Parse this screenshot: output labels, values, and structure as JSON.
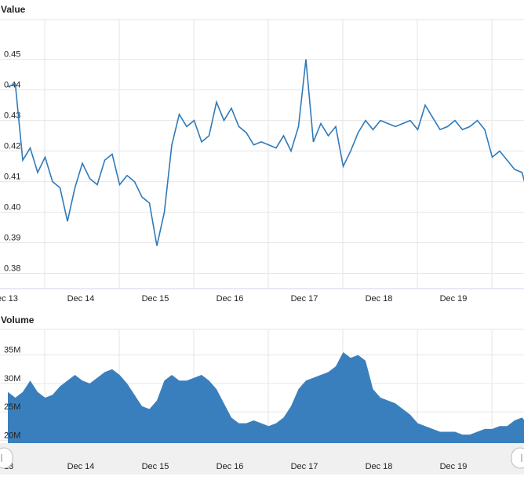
{
  "chart_data": [
    {
      "type": "line",
      "title": "Value",
      "ylim": [
        0.375,
        0.463
      ],
      "yticks": [
        "0.38",
        "0.39",
        "0.40",
        "0.41",
        "0.42",
        "0.43",
        "0.44",
        "0.45"
      ],
      "xticks": [
        "ec 13",
        "Dec 14",
        "Dec 15",
        "Dec 16",
        "Dec 17",
        "Dec 18",
        "Dec 19"
      ],
      "xlim": [
        0,
        7
      ],
      "grid": true,
      "color": "#2f7ab9",
      "series": [
        {
          "x": [
            0,
            0.1,
            0.2,
            0.3,
            0.4,
            0.5,
            0.6,
            0.7,
            0.8,
            0.9,
            1.0,
            1.1,
            1.2,
            1.3,
            1.4,
            1.5,
            1.6,
            1.7,
            1.8,
            1.9,
            2.0,
            2.1,
            2.2,
            2.3,
            2.4,
            2.5,
            2.6,
            2.7,
            2.8,
            2.9,
            3.0,
            3.1,
            3.2,
            3.3,
            3.4,
            3.5,
            3.6,
            3.7,
            3.8,
            3.9,
            4.0,
            4.1,
            4.2,
            4.3,
            4.4,
            4.5,
            4.6,
            4.7,
            4.8,
            4.9,
            5.0,
            5.1,
            5.2,
            5.3,
            5.4,
            5.5,
            5.6,
            5.7,
            5.8,
            5.9,
            6.0,
            6.1,
            6.2,
            6.3,
            6.4,
            6.5,
            6.6,
            6.7,
            6.8,
            6.9,
            7.0
          ],
          "y": [
            0.441,
            0.442,
            0.417,
            0.421,
            0.413,
            0.418,
            0.41,
            0.408,
            0.397,
            0.408,
            0.416,
            0.411,
            0.409,
            0.417,
            0.419,
            0.409,
            0.412,
            0.41,
            0.405,
            0.403,
            0.389,
            0.4,
            0.422,
            0.432,
            0.428,
            0.43,
            0.423,
            0.425,
            0.436,
            0.43,
            0.434,
            0.428,
            0.426,
            0.422,
            0.423,
            0.422,
            0.421,
            0.425,
            0.42,
            0.428,
            0.45,
            0.423,
            0.429,
            0.425,
            0.428,
            0.415,
            0.42,
            0.426,
            0.43,
            0.427,
            0.43,
            0.429,
            0.428,
            0.429,
            0.43,
            0.427,
            0.435,
            0.431,
            0.427,
            0.428,
            0.43,
            0.427,
            0.428,
            0.43,
            0.427,
            0.418,
            0.42,
            0.417,
            0.414,
            0.413,
            0.404
          ]
        }
      ]
    },
    {
      "type": "area",
      "title": "Volume",
      "ylim": [
        19.5,
        39.5
      ],
      "yticks": [
        "20M",
        "25M",
        "30M",
        "35M"
      ],
      "xticks": [
        "13",
        "Dec 14",
        "Dec 15",
        "Dec 16",
        "Dec 17",
        "Dec 18",
        "Dec 19"
      ],
      "xlim": [
        0,
        7
      ],
      "grid": true,
      "color": "#3a7fbd",
      "series": [
        {
          "x": [
            0,
            0.1,
            0.2,
            0.3,
            0.4,
            0.5,
            0.6,
            0.7,
            0.8,
            0.9,
            1.0,
            1.1,
            1.2,
            1.3,
            1.4,
            1.5,
            1.6,
            1.7,
            1.8,
            1.9,
            2.0,
            2.1,
            2.2,
            2.3,
            2.4,
            2.5,
            2.6,
            2.7,
            2.8,
            2.9,
            3.0,
            3.1,
            3.2,
            3.3,
            3.4,
            3.5,
            3.6,
            3.7,
            3.8,
            3.9,
            4.0,
            4.1,
            4.2,
            4.3,
            4.4,
            4.5,
            4.6,
            4.7,
            4.8,
            4.9,
            5.0,
            5.1,
            5.2,
            5.3,
            5.4,
            5.5,
            5.6,
            5.7,
            5.8,
            5.9,
            6.0,
            6.1,
            6.2,
            6.3,
            6.4,
            6.5,
            6.6,
            6.7,
            6.8,
            6.9,
            7.0
          ],
          "y": [
            28.5,
            27.5,
            28.5,
            30.5,
            28.5,
            27.5,
            28.0,
            29.5,
            30.5,
            31.5,
            30.5,
            30.0,
            31.0,
            32.0,
            32.5,
            31.5,
            30.0,
            28.0,
            26.0,
            25.5,
            27.0,
            30.5,
            31.5,
            30.5,
            30.5,
            31.0,
            31.5,
            30.5,
            29.0,
            26.5,
            24.0,
            23.0,
            23.0,
            23.5,
            23.0,
            22.5,
            23.0,
            24.0,
            26.0,
            29.0,
            30.5,
            31.0,
            31.5,
            32.0,
            33.0,
            35.5,
            34.5,
            35.0,
            34.0,
            29.0,
            27.5,
            27.0,
            26.5,
            25.5,
            24.5,
            23.0,
            22.5,
            22.0,
            21.5,
            21.5,
            21.5,
            21.0,
            21.0,
            21.5,
            22.0,
            22.0,
            22.5,
            22.5,
            23.5,
            24.0,
            22.5
          ]
        }
      ]
    }
  ]
}
